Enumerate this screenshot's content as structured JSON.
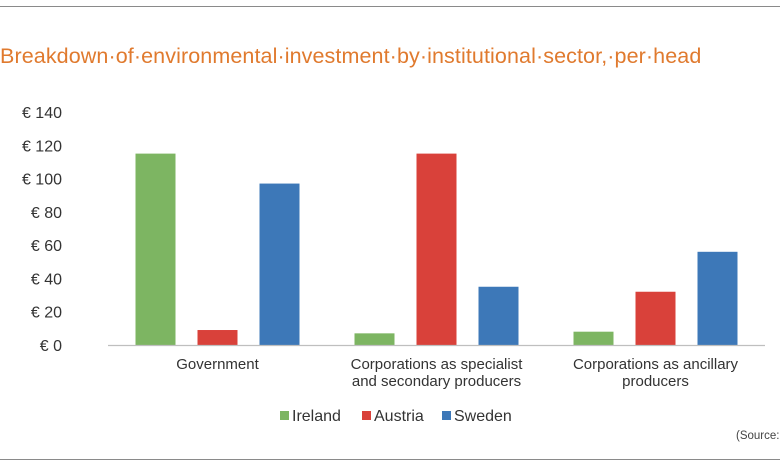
{
  "title": "Breakdown·of·environmental·investment·by·institutional·sector,·per·head",
  "source": "(Source:",
  "colors": {
    "title": "#e07a2e",
    "ireland": "#7db562",
    "austria": "#d9413a",
    "sweden": "#3d78b8"
  },
  "chart_data": {
    "type": "bar",
    "categories": [
      [
        "Government"
      ],
      [
        "Corporations as specialist",
        "and secondary producers"
      ],
      [
        "Corporations as ancillary",
        "producers"
      ]
    ],
    "series": [
      {
        "name": "Ireland",
        "values": [
          115,
          7,
          8
        ]
      },
      {
        "name": "Austria",
        "values": [
          9,
          115,
          32
        ]
      },
      {
        "name": "Sweden",
        "values": [
          97,
          35,
          56
        ]
      }
    ],
    "ylim": [
      0,
      140
    ],
    "yticks": [
      0,
      20,
      40,
      60,
      80,
      100,
      120,
      140
    ],
    "ytick_prefix": "€ ",
    "grid": false,
    "legend_position": "bottom"
  }
}
